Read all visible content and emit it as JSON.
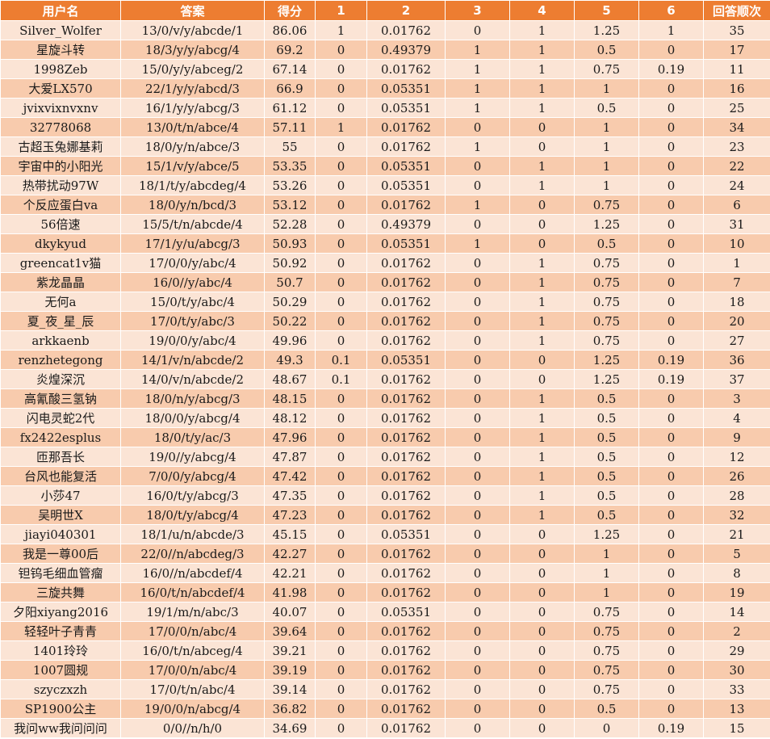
{
  "colors": {
    "header_bg": "#ed7d31",
    "header_text": "#ffffff",
    "row_light": "#fbe4d5",
    "row_mid": "#f8cbad"
  },
  "headers": [
    "用户名",
    "答案",
    "得分",
    "1",
    "2",
    "3",
    "4",
    "5",
    "6",
    "回答顺次"
  ],
  "rows": [
    [
      "Silver_Wolfer",
      "13/0/v/y/abcde/1",
      "86.06",
      "1",
      "0.01762",
      "0",
      "1",
      "1.25",
      "1",
      "35"
    ],
    [
      "星旋斗转",
      "18/3/y/y/abcg/4",
      "69.2",
      "0",
      "0.49379",
      "1",
      "1",
      "0.5",
      "0",
      "17"
    ],
    [
      "1998Zeb",
      "15/0/y/y/abceg/2",
      "67.14",
      "0",
      "0.01762",
      "1",
      "1",
      "0.75",
      "0.19",
      "11"
    ],
    [
      "大爱LX570",
      "22/1/y/y/abcd/3",
      "66.9",
      "0",
      "0.05351",
      "1",
      "1",
      "1",
      "0",
      "16"
    ],
    [
      "jvixvixnvxnv",
      "16/1/y/y/abcg/3",
      "61.12",
      "0",
      "0.05351",
      "1",
      "1",
      "0.5",
      "0",
      "25"
    ],
    [
      "32778068",
      "13/0/t/n/abce/4",
      "57.11",
      "1",
      "0.01762",
      "0",
      "0",
      "1",
      "0",
      "34"
    ],
    [
      "古超玉兔娜基莉",
      "18/0/y/n/abce/3",
      "55",
      "0",
      "0.01762",
      "1",
      "0",
      "1",
      "0",
      "23"
    ],
    [
      "宇宙中的小阳光",
      "15/1/v/y/abce/5",
      "53.35",
      "0",
      "0.05351",
      "0",
      "1",
      "1",
      "0",
      "22"
    ],
    [
      "热带扰动97W",
      "18/1/t/y/abcdeg/4",
      "53.26",
      "0",
      "0.05351",
      "0",
      "1",
      "1",
      "0",
      "24"
    ],
    [
      "个反应蛋白va",
      "18/0/y/n/bcd/3",
      "53.12",
      "0",
      "0.01762",
      "1",
      "0",
      "0.75",
      "0",
      "6"
    ],
    [
      "56倍速",
      "15/5/t/n/abcde/4",
      "52.28",
      "0",
      "0.49379",
      "0",
      "0",
      "1.25",
      "0",
      "31"
    ],
    [
      "dkykyud",
      "17/1/y/u/abcg/3",
      "50.93",
      "0",
      "0.05351",
      "1",
      "0",
      "0.5",
      "0",
      "10"
    ],
    [
      "greencat1v猫",
      "17/0/0/y/abc/4",
      "50.92",
      "0",
      "0.01762",
      "0",
      "1",
      "0.75",
      "0",
      "1"
    ],
    [
      "紫龙晶晶",
      "16/0//y/abc/4",
      "50.7",
      "0",
      "0.01762",
      "0",
      "1",
      "0.75",
      "0",
      "7"
    ],
    [
      "无何a",
      "15/0/t/y/abc/4",
      "50.29",
      "0",
      "0.01762",
      "0",
      "1",
      "0.75",
      "0",
      "18"
    ],
    [
      "夏_夜_星_辰",
      "17/0/t/y/abc/3",
      "50.22",
      "0",
      "0.01762",
      "0",
      "1",
      "0.75",
      "0",
      "20"
    ],
    [
      "arkkaenb",
      "19/0/0/y/abc/4",
      "49.96",
      "0",
      "0.01762",
      "0",
      "1",
      "0.75",
      "0",
      "27"
    ],
    [
      "renzhetegong",
      "14/1/v/n/abcde/2",
      "49.3",
      "0.1",
      "0.05351",
      "0",
      "0",
      "1.25",
      "0.19",
      "36"
    ],
    [
      "炎煌深沉",
      "14/0/v/n/abcde/2",
      "48.67",
      "0.1",
      "0.01762",
      "0",
      "0",
      "1.25",
      "0.19",
      "37"
    ],
    [
      "高氰酸三氢钠",
      "18/0/n/y/abcg/3",
      "48.15",
      "0",
      "0.01762",
      "0",
      "1",
      "0.5",
      "0",
      "3"
    ],
    [
      "闪电灵蛇2代",
      "18/0/0/y/abcg/4",
      "48.12",
      "0",
      "0.01762",
      "0",
      "1",
      "0.5",
      "0",
      "4"
    ],
    [
      "fx2422esplus",
      "18/0/t/y/ac/3",
      "47.96",
      "0",
      "0.01762",
      "0",
      "1",
      "0.5",
      "0",
      "9"
    ],
    [
      "匝那吾长",
      "19/0//y/abcg/4",
      "47.87",
      "0",
      "0.01762",
      "0",
      "1",
      "0.5",
      "0",
      "12"
    ],
    [
      "台风也能复活",
      "7/0/0/y/abcg/4",
      "47.42",
      "0",
      "0.01762",
      "0",
      "1",
      "0.5",
      "0",
      "26"
    ],
    [
      "小莎47",
      "16/0/t/y/abcg/3",
      "47.35",
      "0",
      "0.01762",
      "0",
      "1",
      "0.5",
      "0",
      "28"
    ],
    [
      "吴明世X",
      "18/0/t/y/abcg/4",
      "47.23",
      "0",
      "0.01762",
      "0",
      "1",
      "0.5",
      "0",
      "32"
    ],
    [
      "jiayi040301",
      "18/1/u/n/abcde/3",
      "45.15",
      "0",
      "0.05351",
      "0",
      "0",
      "1.25",
      "0",
      "21"
    ],
    [
      "我是一尊00后",
      "22/0//n/abcdeg/3",
      "42.27",
      "0",
      "0.01762",
      "0",
      "0",
      "1",
      "0",
      "5"
    ],
    [
      "钽钨毛细血管瘤",
      "16/0//n/abcdef/4",
      "42.21",
      "0",
      "0.01762",
      "0",
      "0",
      "1",
      "0",
      "8"
    ],
    [
      "三旋共舞",
      "16/0/t/n/abcdef/4",
      "41.98",
      "0",
      "0.01762",
      "0",
      "0",
      "1",
      "0",
      "19"
    ],
    [
      "夕阳xiyang2016",
      "19/1/m/n/abc/3",
      "40.07",
      "0",
      "0.05351",
      "0",
      "0",
      "0.75",
      "0",
      "14"
    ],
    [
      "轻轻叶子青青",
      "17/0/0/n/abc/4",
      "39.64",
      "0",
      "0.01762",
      "0",
      "0",
      "0.75",
      "0",
      "2"
    ],
    [
      "1401玲玲",
      "16/0/t/n/abceg/4",
      "39.21",
      "0",
      "0.01762",
      "0",
      "0",
      "0.75",
      "0",
      "29"
    ],
    [
      "1007圆规",
      "17/0/0/n/abc/4",
      "39.19",
      "0",
      "0.01762",
      "0",
      "0",
      "0.75",
      "0",
      "30"
    ],
    [
      "szyczxzh",
      "17/0/t/n/abc/4",
      "39.14",
      "0",
      "0.01762",
      "0",
      "0",
      "0.75",
      "0",
      "33"
    ],
    [
      "SP1900公主",
      "19/0/0/n/abcg/4",
      "36.82",
      "0",
      "0.01762",
      "0",
      "0",
      "0.5",
      "0",
      "13"
    ],
    [
      "我问ww我问问问",
      "0/0//n/h/0",
      "34.69",
      "0",
      "0.01762",
      "0",
      "0",
      "0",
      "0.19",
      "15"
    ]
  ]
}
